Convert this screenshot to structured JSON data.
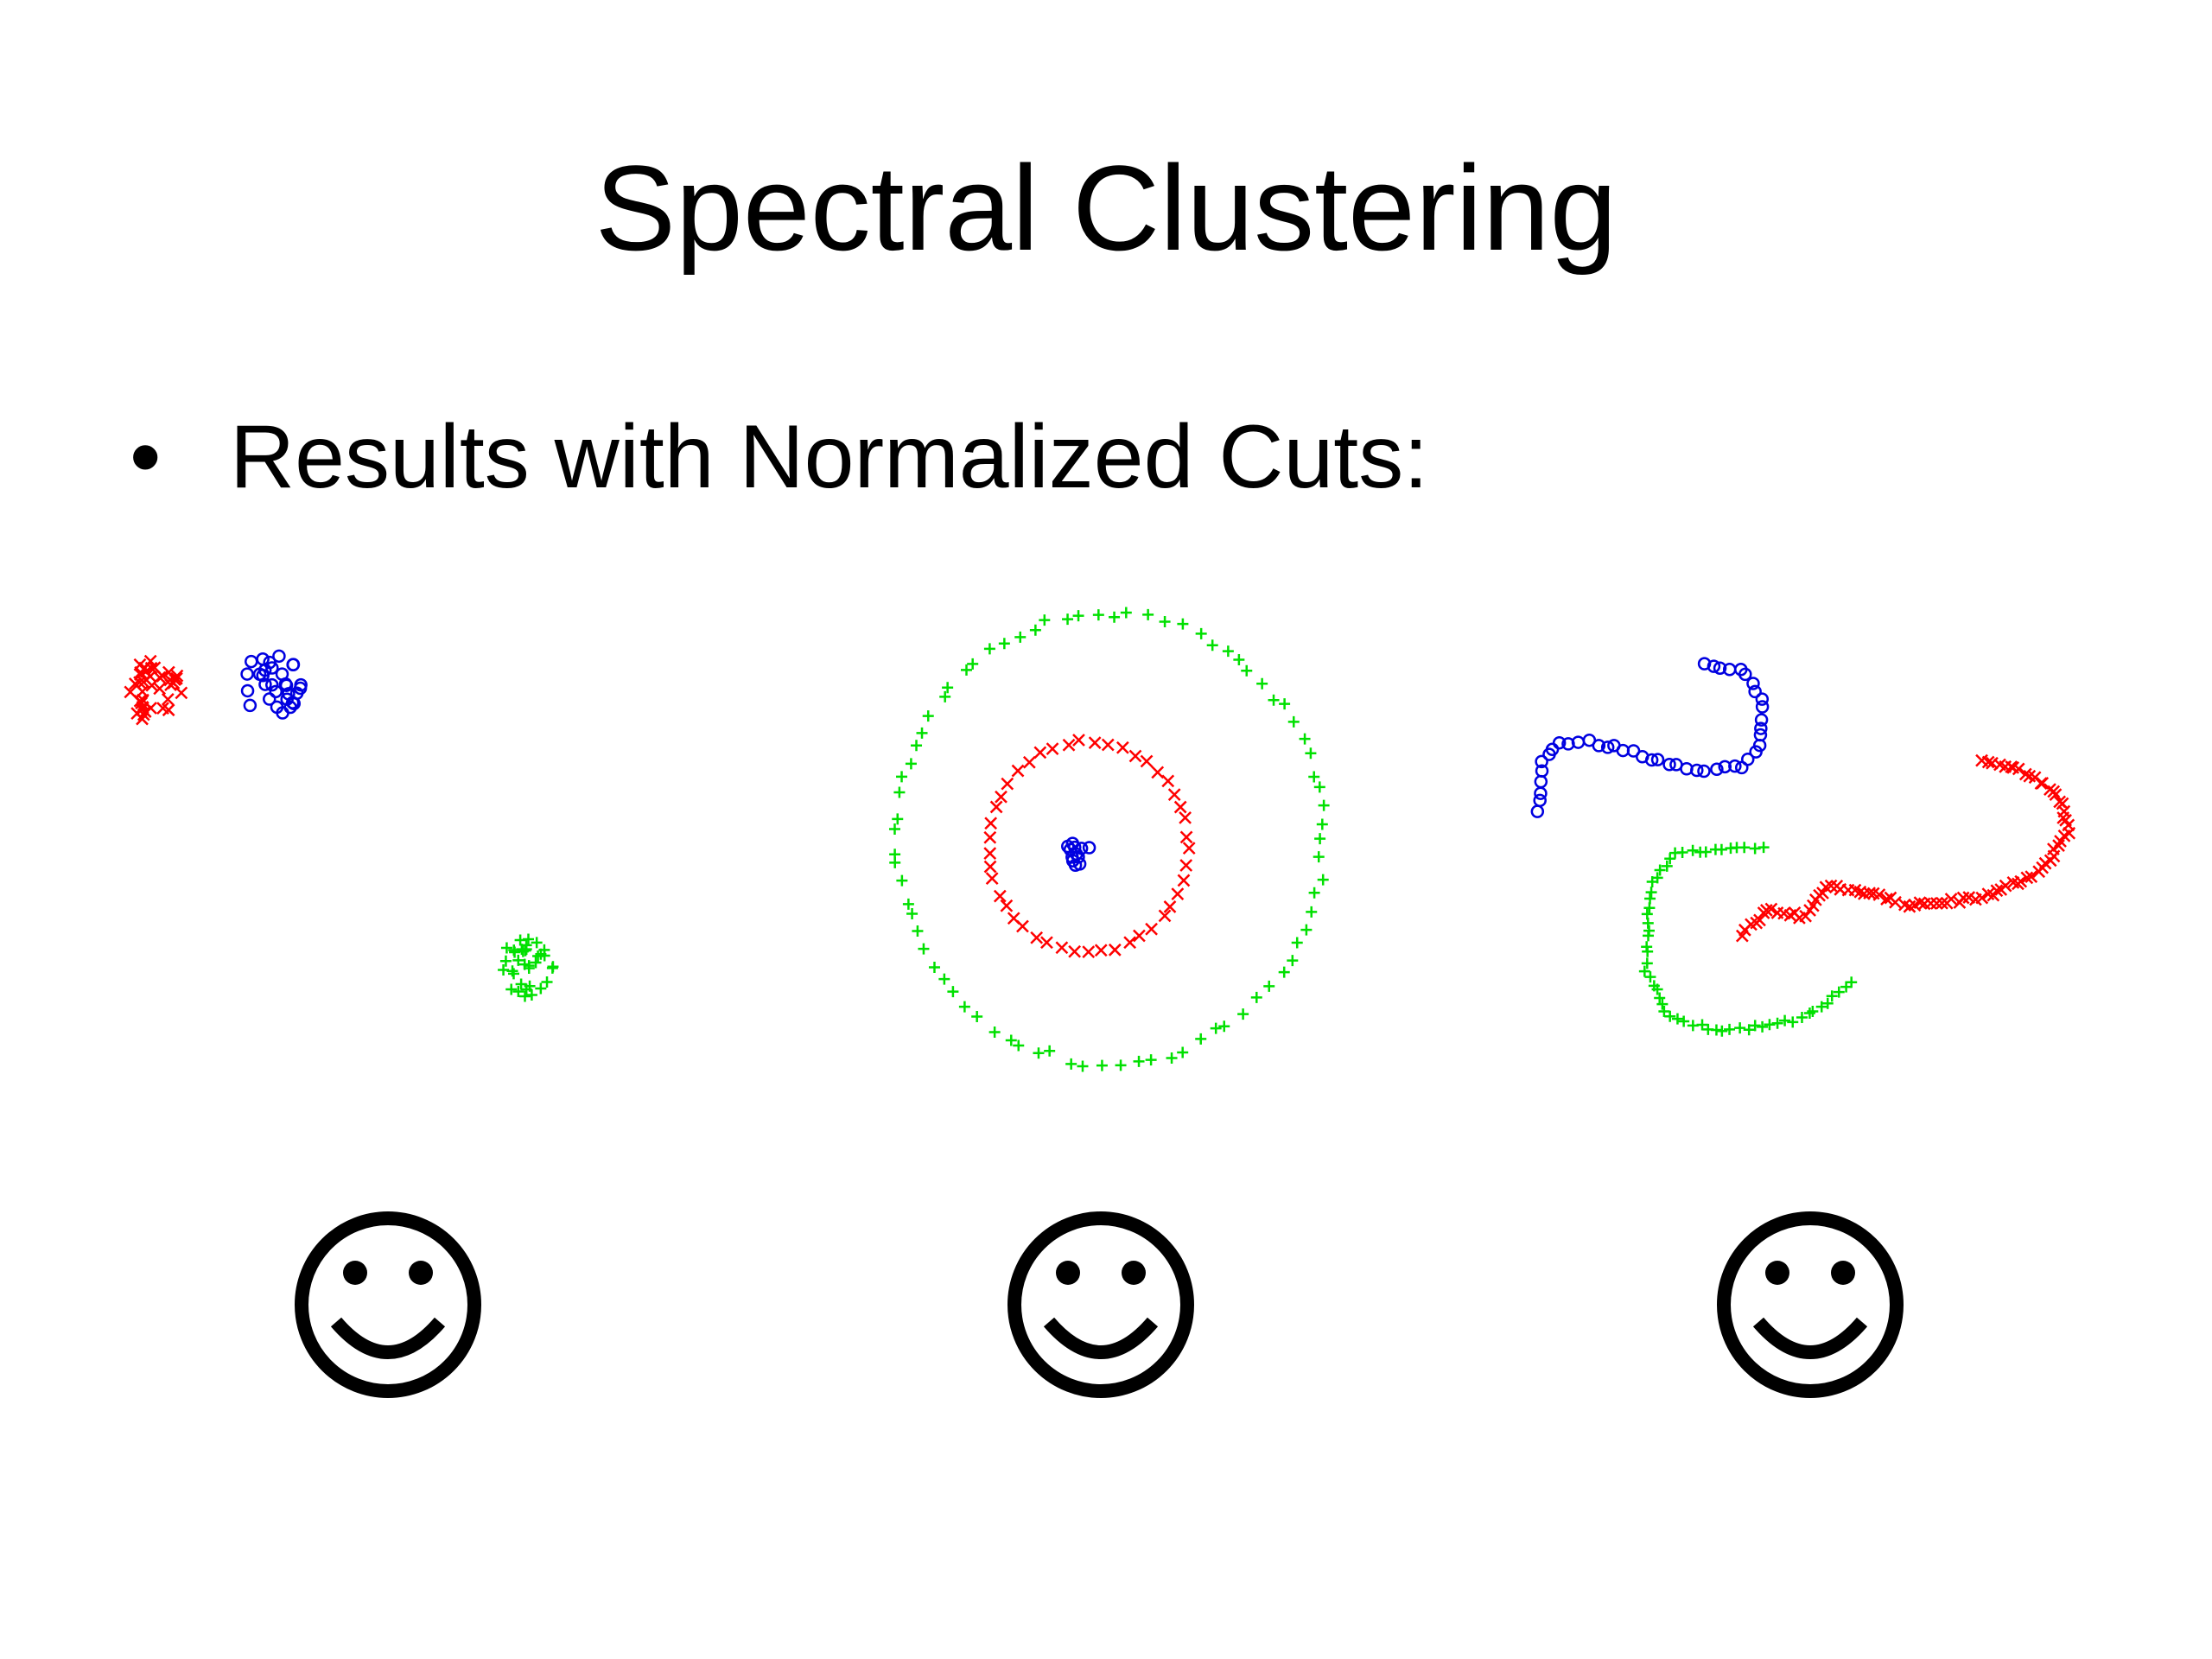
{
  "header": {
    "title": "Spectral Clustering"
  },
  "bullets": [
    "Results with Normalized Cuts:"
  ]
}
